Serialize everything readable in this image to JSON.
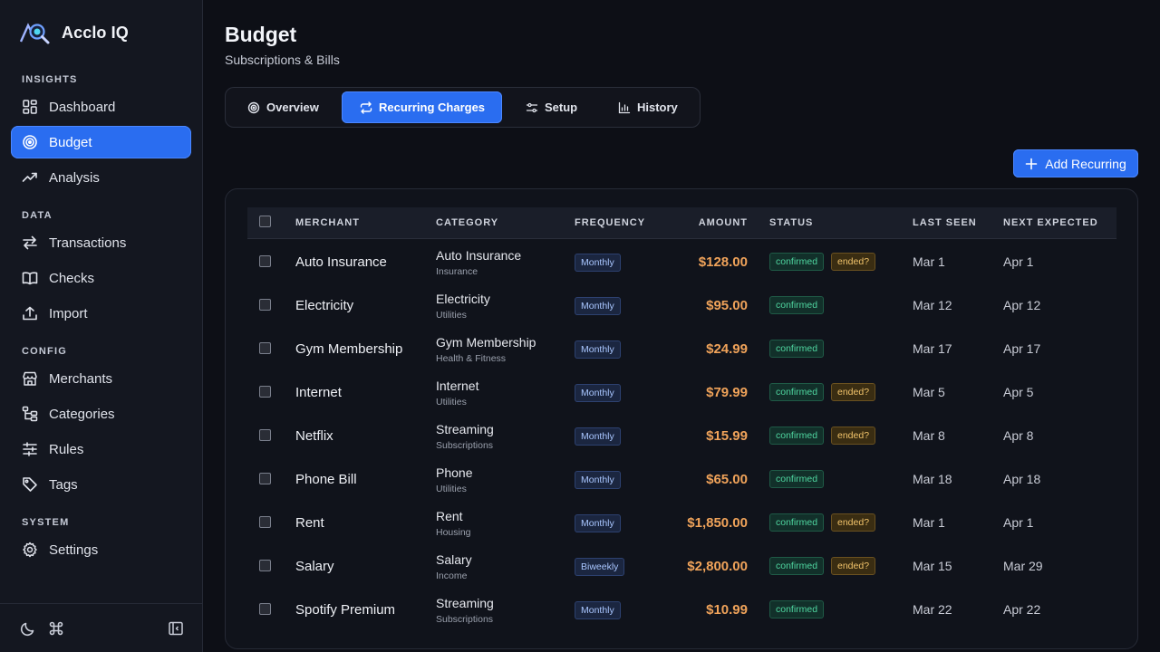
{
  "app": {
    "name": "Acclo IQ"
  },
  "sidebar": {
    "sections": [
      {
        "label": "INSIGHTS"
      },
      {
        "label": "DATA"
      },
      {
        "label": "CONFIG"
      },
      {
        "label": "SYSTEM"
      }
    ],
    "items": [
      {
        "label": "Dashboard",
        "icon": "grid-icon"
      },
      {
        "label": "Budget",
        "icon": "target-icon",
        "active": true
      },
      {
        "label": "Analysis",
        "icon": "trend-up-icon"
      },
      {
        "label": "Transactions",
        "icon": "arrows-swap-icon"
      },
      {
        "label": "Checks",
        "icon": "book-open-icon"
      },
      {
        "label": "Import",
        "icon": "upload-icon"
      },
      {
        "label": "Merchants",
        "icon": "store-icon"
      },
      {
        "label": "Categories",
        "icon": "hierarchy-icon"
      },
      {
        "label": "Rules",
        "icon": "sliders-icon"
      },
      {
        "label": "Tags",
        "icon": "tag-icon"
      },
      {
        "label": "Settings",
        "icon": "gear-icon"
      }
    ],
    "footer": {
      "icons": [
        "moon-icon",
        "command-icon",
        "collapse-sidebar-icon"
      ]
    }
  },
  "header": {
    "title": "Budget",
    "subtitle": "Subscriptions & Bills"
  },
  "tabs": [
    {
      "label": "Overview",
      "icon": "target-icon"
    },
    {
      "label": "Recurring Charges",
      "icon": "repeat-icon",
      "active": true
    },
    {
      "label": "Setup",
      "icon": "sliders-icon"
    },
    {
      "label": "History",
      "icon": "bar-chart-icon"
    }
  ],
  "actions": {
    "add_label": "Add Recurring"
  },
  "table": {
    "columns": [
      "MERCHANT",
      "CATEGORY",
      "FREQUENCY",
      "AMOUNT",
      "STATUS",
      "LAST SEEN",
      "NEXT EXPECTED"
    ],
    "rows": [
      {
        "merchant": "Auto Insurance",
        "category": "Auto Insurance",
        "group": "Insurance",
        "frequency": "Monthly",
        "amount": "$128.00",
        "status": "confirmed",
        "flag": "ended?",
        "last_seen": "Mar 1",
        "next": "Apr 1"
      },
      {
        "merchant": "Electricity",
        "category": "Electricity",
        "group": "Utilities",
        "frequency": "Monthly",
        "amount": "$95.00",
        "status": "confirmed",
        "flag": "",
        "last_seen": "Mar 12",
        "next": "Apr 12"
      },
      {
        "merchant": "Gym Membership",
        "category": "Gym Membership",
        "group": "Health & Fitness",
        "frequency": "Monthly",
        "amount": "$24.99",
        "status": "confirmed",
        "flag": "",
        "last_seen": "Mar 17",
        "next": "Apr 17"
      },
      {
        "merchant": "Internet",
        "category": "Internet",
        "group": "Utilities",
        "frequency": "Monthly",
        "amount": "$79.99",
        "status": "confirmed",
        "flag": "ended?",
        "last_seen": "Mar 5",
        "next": "Apr 5"
      },
      {
        "merchant": "Netflix",
        "category": "Streaming",
        "group": "Subscriptions",
        "frequency": "Monthly",
        "amount": "$15.99",
        "status": "confirmed",
        "flag": "ended?",
        "last_seen": "Mar 8",
        "next": "Apr 8"
      },
      {
        "merchant": "Phone Bill",
        "category": "Phone",
        "group": "Utilities",
        "frequency": "Monthly",
        "amount": "$65.00",
        "status": "confirmed",
        "flag": "",
        "last_seen": "Mar 18",
        "next": "Apr 18"
      },
      {
        "merchant": "Rent",
        "category": "Rent",
        "group": "Housing",
        "frequency": "Monthly",
        "amount": "$1,850.00",
        "status": "confirmed",
        "flag": "ended?",
        "last_seen": "Mar 1",
        "next": "Apr 1"
      },
      {
        "merchant": "Salary",
        "category": "Salary",
        "group": "Income",
        "frequency": "Biweekly",
        "amount": "$2,800.00",
        "status": "confirmed",
        "flag": "ended?",
        "last_seen": "Mar 15",
        "next": "Mar 29"
      },
      {
        "merchant": "Spotify Premium",
        "category": "Streaming",
        "group": "Subscriptions",
        "frequency": "Monthly",
        "amount": "$10.99",
        "status": "confirmed",
        "flag": "",
        "last_seen": "Mar 22",
        "next": "Apr 22"
      }
    ]
  },
  "colors": {
    "accent": "#2a6df0",
    "amount": "#f0a35a",
    "confirmed": "#4fd6a0",
    "warning": "#f2c46b",
    "background": "#0d0f16",
    "sidebar": "#141720"
  }
}
